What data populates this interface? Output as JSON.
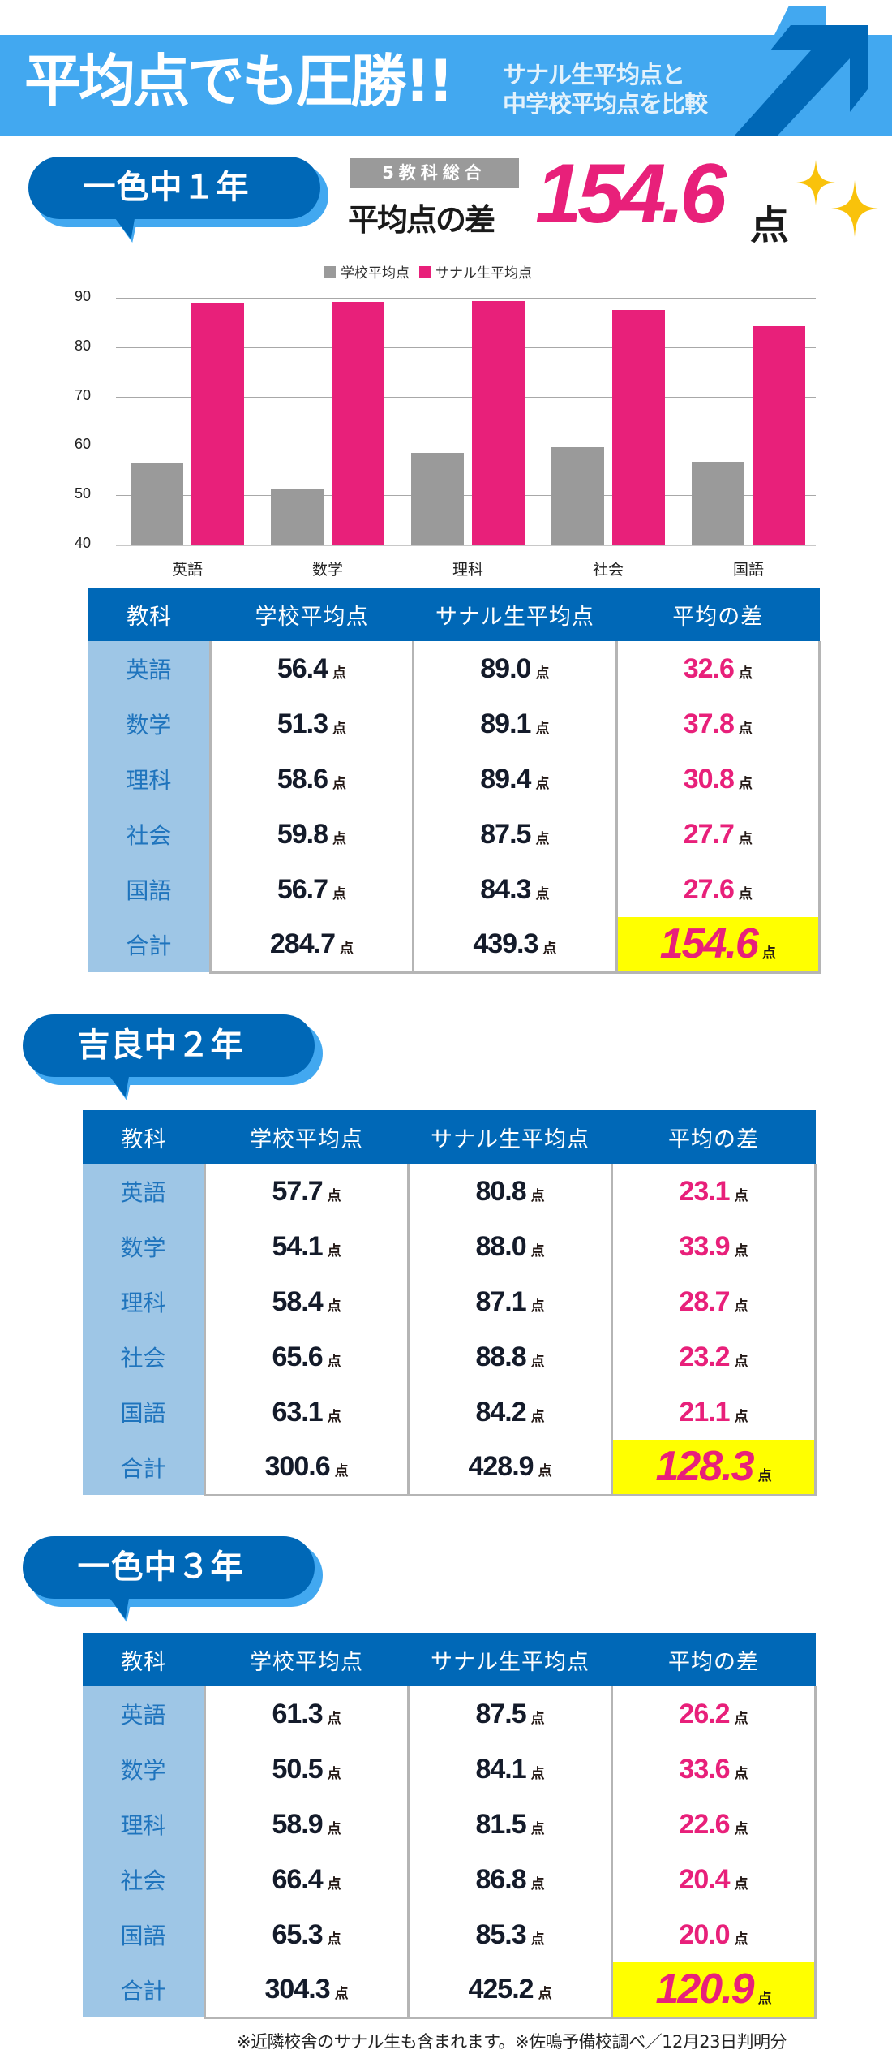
{
  "banner": {
    "title": "平均点でも圧勝!!",
    "subtitle_line1": "サナル生平均点と",
    "subtitle_line2": "中学校平均点を比較"
  },
  "colors": {
    "banner_bg": "#42A8F0",
    "primary_blue": "#0068B7",
    "pink": "#E8207A",
    "gray_bar": "#9A9A9A",
    "highlight_yellow": "#FFFF00",
    "subject_cell_bg": "#9EC6E6"
  },
  "summary": {
    "tag": "5教科総合",
    "label": "平均点の差",
    "value": "154.6",
    "unit": "点"
  },
  "unit": "点",
  "table_headers": [
    "教科",
    "学校平均点",
    "サナル生平均点",
    "平均の差"
  ],
  "sections": [
    {
      "title": "一色中１年",
      "rows": [
        {
          "subject": "英語",
          "school": "56.4",
          "sanaru": "89.0",
          "diff": "32.6"
        },
        {
          "subject": "数学",
          "school": "51.3",
          "sanaru": "89.1",
          "diff": "37.8"
        },
        {
          "subject": "理科",
          "school": "58.6",
          "sanaru": "89.4",
          "diff": "30.8"
        },
        {
          "subject": "社会",
          "school": "59.8",
          "sanaru": "87.5",
          "diff": "27.7"
        },
        {
          "subject": "国語",
          "school": "56.7",
          "sanaru": "84.3",
          "diff": "27.6"
        }
      ],
      "total": {
        "subject": "合計",
        "school": "284.7",
        "sanaru": "439.3",
        "diff": "154.6"
      }
    },
    {
      "title": "吉良中２年",
      "rows": [
        {
          "subject": "英語",
          "school": "57.7",
          "sanaru": "80.8",
          "diff": "23.1"
        },
        {
          "subject": "数学",
          "school": "54.1",
          "sanaru": "88.0",
          "diff": "33.9"
        },
        {
          "subject": "理科",
          "school": "58.4",
          "sanaru": "87.1",
          "diff": "28.7"
        },
        {
          "subject": "社会",
          "school": "65.6",
          "sanaru": "88.8",
          "diff": "23.2"
        },
        {
          "subject": "国語",
          "school": "63.1",
          "sanaru": "84.2",
          "diff": "21.1"
        }
      ],
      "total": {
        "subject": "合計",
        "school": "300.6",
        "sanaru": "428.9",
        "diff": "128.3"
      }
    },
    {
      "title": "一色中３年",
      "rows": [
        {
          "subject": "英語",
          "school": "61.3",
          "sanaru": "87.5",
          "diff": "26.2"
        },
        {
          "subject": "数学",
          "school": "50.5",
          "sanaru": "84.1",
          "diff": "33.6"
        },
        {
          "subject": "理科",
          "school": "58.9",
          "sanaru": "81.5",
          "diff": "22.6"
        },
        {
          "subject": "社会",
          "school": "66.4",
          "sanaru": "86.8",
          "diff": "20.4"
        },
        {
          "subject": "国語",
          "school": "65.3",
          "sanaru": "85.3",
          "diff": "20.0"
        }
      ],
      "total": {
        "subject": "合計",
        "school": "304.3",
        "sanaru": "425.2",
        "diff": "120.9"
      }
    }
  ],
  "chart_data": {
    "type": "bar",
    "title": "",
    "categories": [
      "英語",
      "数学",
      "理科",
      "社会",
      "国語"
    ],
    "series": [
      {
        "name": "学校平均点",
        "color": "#9A9A9A",
        "values": [
          56.4,
          51.3,
          58.6,
          59.8,
          56.7
        ]
      },
      {
        "name": "サナル生平均点",
        "color": "#E8207A",
        "values": [
          89.0,
          89.1,
          89.4,
          87.5,
          84.3
        ]
      }
    ],
    "xlabel": "",
    "ylabel": "",
    "ylim": [
      40,
      90
    ],
    "yticks": [
      90,
      80,
      70,
      60,
      50,
      40
    ],
    "grid": true,
    "legend_position": "top"
  },
  "footnote": "※近隣校舎のサナル生も含まれます。※佐鳴予備校調べ／12月23日判明分"
}
